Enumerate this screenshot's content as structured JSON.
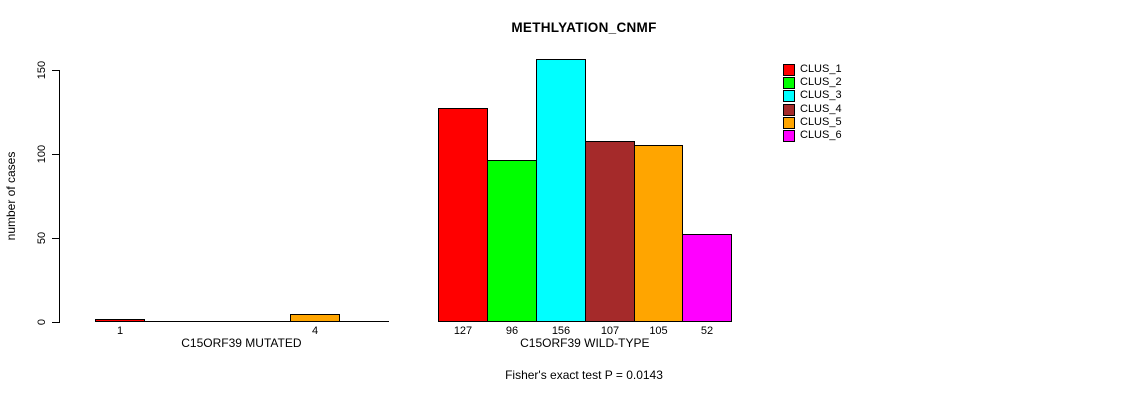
{
  "chart_data": {
    "type": "bar",
    "title": "METHLYATION_CNMF",
    "ylabel": "number of cases",
    "ylim": [
      0,
      150
    ],
    "yticks": [
      0,
      50,
      100,
      150
    ],
    "grid": false,
    "legend_position": "top-right",
    "categories": [
      "CLUS_1",
      "CLUS_2",
      "CLUS_3",
      "CLUS_4",
      "CLUS_5",
      "CLUS_6"
    ],
    "legend": [
      {
        "label": "CLUS_1",
        "color": "#FF0000"
      },
      {
        "label": "CLUS_2",
        "color": "#00FF00"
      },
      {
        "label": "CLUS_3",
        "color": "#00FFFF"
      },
      {
        "label": "CLUS_4",
        "color": "#A52A2A"
      },
      {
        "label": "CLUS_5",
        "color": "#FFA500"
      },
      {
        "label": "CLUS_6",
        "color": "#FF00FF"
      }
    ],
    "groups": [
      {
        "label": "C15ORF39 MUTATED",
        "values": [
          1,
          0,
          0,
          0,
          4,
          0
        ],
        "bar_labels": [
          "1",
          "",
          "",
          "",
          "4",
          ""
        ]
      },
      {
        "label": "C15ORF39 WILD-TYPE",
        "values": [
          127,
          96,
          156,
          107,
          105,
          52
        ],
        "bar_labels": [
          "127",
          "96",
          "156",
          "107",
          "105",
          "52"
        ]
      }
    ],
    "annotation": "Fisher's exact test P = 0.0143"
  }
}
